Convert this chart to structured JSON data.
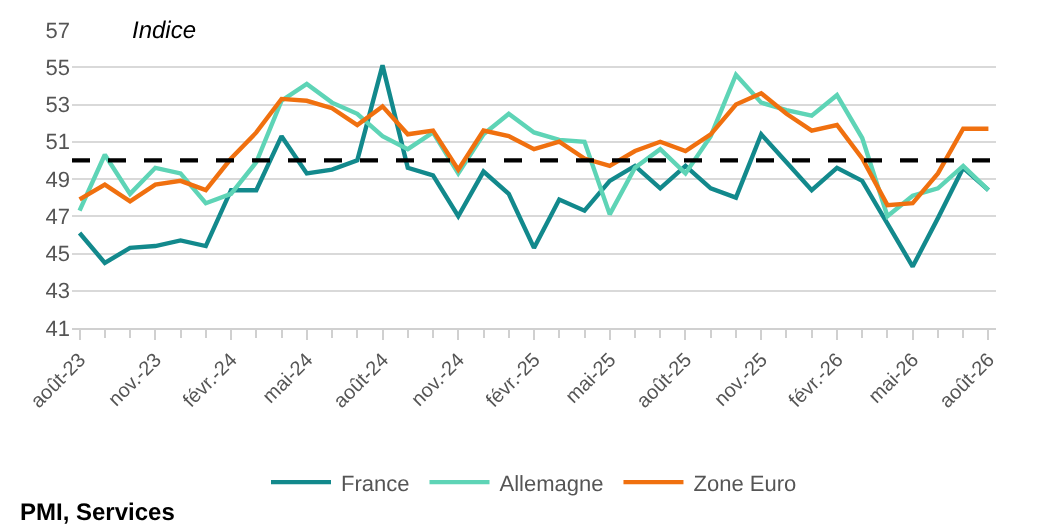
{
  "chart_data": {
    "type": "line",
    "categories": [
      "août-23",
      null,
      null,
      "nov.-23",
      null,
      null,
      "févr.-24",
      null,
      null,
      "mai-24",
      null,
      null,
      "août-24",
      null,
      null,
      "nov.-24",
      null,
      null,
      "févr.-25",
      null,
      null,
      "mai-25",
      null,
      null,
      "août-25",
      null,
      null,
      "nov.-25",
      null,
      null,
      "févr.-26",
      null,
      null,
      "mai-26",
      null,
      null,
      "août-26"
    ],
    "series": [
      {
        "name": "France",
        "color": "#12898c",
        "values": [
          46.1,
          44.5,
          45.3,
          45.4,
          45.7,
          45.4,
          48.4,
          48.4,
          51.3,
          49.3,
          49.5,
          50.0,
          55.1,
          49.6,
          49.2,
          47.0,
          49.4,
          48.2,
          45.3,
          47.9,
          47.3,
          48.9,
          49.7,
          48.5,
          49.7,
          48.5,
          48.0,
          51.4,
          49.9,
          48.4,
          49.6,
          48.9,
          46.6,
          44.3,
          46.9,
          49.6,
          48.4
        ]
      },
      {
        "name": "Allemagne",
        "color": "#5ed4b6",
        "values": [
          47.3,
          50.3,
          48.2,
          49.6,
          49.3,
          47.7,
          48.2,
          49.9,
          53.2,
          54.1,
          53.1,
          52.5,
          51.3,
          50.6,
          51.5,
          49.3,
          51.4,
          52.5,
          51.5,
          51.1,
          51.0,
          47.1,
          49.6,
          50.6,
          49.3,
          51.3,
          54.6,
          53.1,
          52.7,
          52.4,
          53.5,
          51.2,
          47.0,
          48.1,
          48.5,
          49.7,
          48.4
        ]
      },
      {
        "name": "Zone Euro",
        "color": "#f0700f",
        "values": [
          47.9,
          48.7,
          47.8,
          48.7,
          48.9,
          48.4,
          50.1,
          51.5,
          53.3,
          53.2,
          52.8,
          51.9,
          52.9,
          51.4,
          51.6,
          49.5,
          51.6,
          51.3,
          50.6,
          51.0,
          50.1,
          49.7,
          50.5,
          51.0,
          50.5,
          51.4,
          53.0,
          53.6,
          52.5,
          51.6,
          51.9,
          50.1,
          47.6,
          47.7,
          49.3,
          51.7,
          51.7
        ]
      }
    ],
    "ylim": [
      41,
      57
    ],
    "yticks": [
      41,
      43,
      45,
      47,
      49,
      51,
      53,
      55,
      57
    ],
    "ref_lines": [
      {
        "axis": "y",
        "value": 50,
        "color": "#000000",
        "line_style": "dashed"
      }
    ],
    "annotations": [
      "Indice",
      "PMI, Services"
    ],
    "grid": "y",
    "legend": "bottom",
    "marker": "none",
    "line_style": "solid"
  }
}
